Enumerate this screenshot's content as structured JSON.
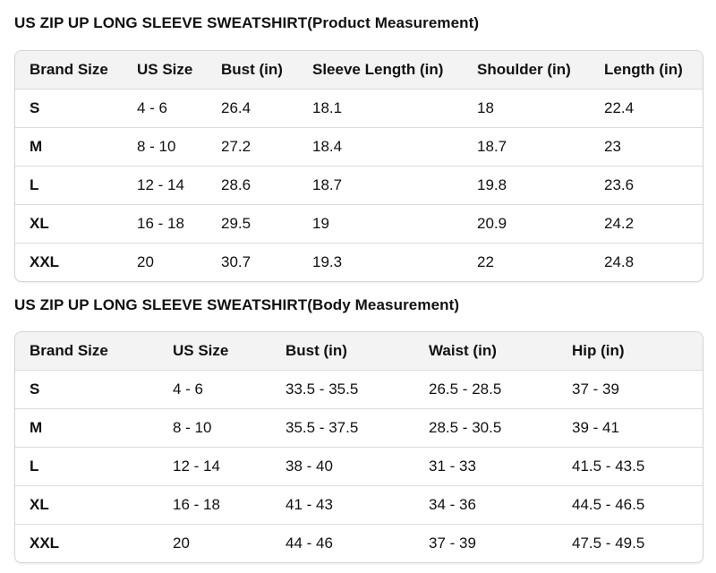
{
  "product_table": {
    "title": "US ZIP UP LONG SLEEVE SWEATSHIRT(Product Measurement)",
    "headers": [
      "Brand Size",
      "US Size",
      "Bust (in)",
      "Sleeve Length (in)",
      "Shoulder (in)",
      "Length (in)"
    ],
    "rows": [
      [
        "S",
        "4 - 6",
        "26.4",
        "18.1",
        "18",
        "22.4"
      ],
      [
        "M",
        "8 - 10",
        "27.2",
        "18.4",
        "18.7",
        "23"
      ],
      [
        "L",
        "12 - 14",
        "28.6",
        "18.7",
        "19.8",
        "23.6"
      ],
      [
        "XL",
        "16 - 18",
        "29.5",
        "19",
        "20.9",
        "24.2"
      ],
      [
        "XXL",
        "20",
        "30.7",
        "19.3",
        "22",
        "24.8"
      ]
    ]
  },
  "body_table": {
    "title": "US ZIP UP LONG SLEEVE SWEATSHIRT(Body Measurement)",
    "headers": [
      "Brand Size",
      "US Size",
      "Bust (in)",
      "Waist (in)",
      "Hip (in)"
    ],
    "rows": [
      [
        "S",
        "4 - 6",
        "33.5 - 35.5",
        "26.5 - 28.5",
        "37 - 39"
      ],
      [
        "M",
        "8 - 10",
        "35.5 - 37.5",
        "28.5 - 30.5",
        "39 - 41"
      ],
      [
        "L",
        "12 - 14",
        "38 - 40",
        "31 - 33",
        "41.5 - 43.5"
      ],
      [
        "XL",
        "16 - 18",
        "41 - 43",
        "34 - 36",
        "44.5 - 46.5"
      ],
      [
        "XXL",
        "20",
        "44 - 46",
        "37 - 39",
        "47.5 - 49.5"
      ]
    ]
  }
}
